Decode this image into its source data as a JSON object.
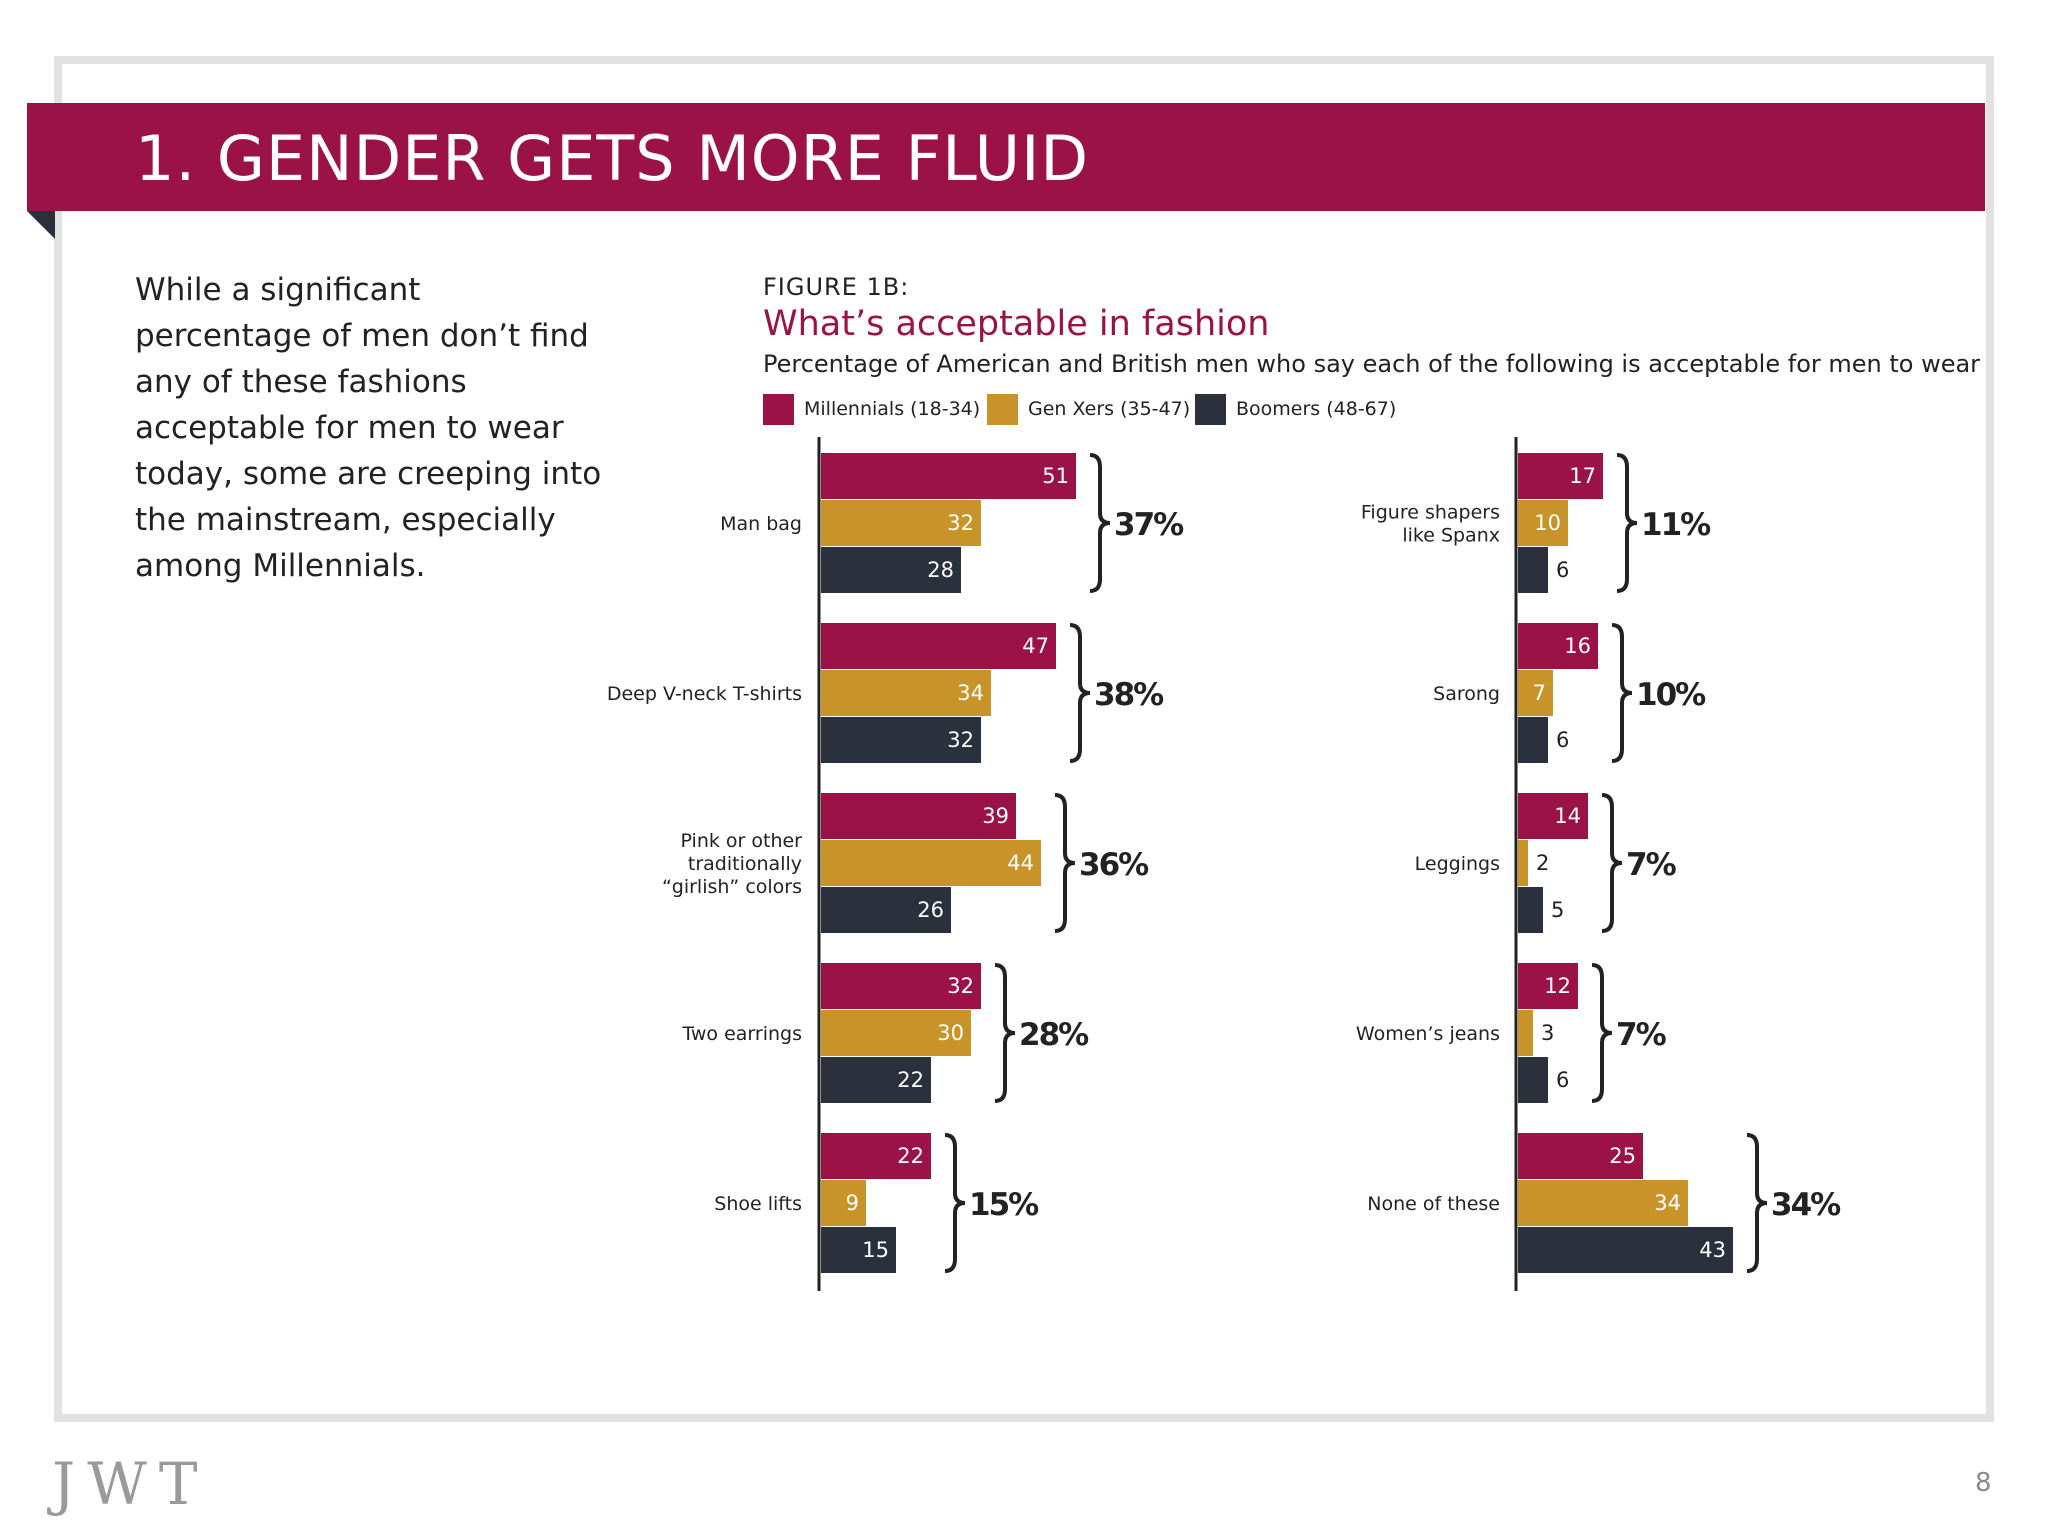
{
  "banner": {
    "title": "1. GENDER GETS MORE FLUID"
  },
  "intro": {
    "text": "While a significant percentage of men don’t find any of these fashions acceptable for men to wear today, some are creeping into the mainstream, especially among Millennials."
  },
  "figure": {
    "label": "FIGURE 1B:",
    "title": "What’s acceptable in fashion",
    "subtitle": "Percentage of American and British men who say each of the following is acceptable for men to wear"
  },
  "colors": {
    "millennials": "#9b1346",
    "genx": "#c8942a",
    "boomers": "#2b303d",
    "banner": "#9b1346"
  },
  "chart_data": {
    "type": "bar",
    "orientation": "horizontal",
    "title": "What’s acceptable in fashion",
    "subtitle": "Percentage of American and British men who say each of the following is acceptable for men to wear",
    "legend": [
      "Millennials (18-34)",
      "Gen Xers (35-47)",
      "Boomers (48-67)"
    ],
    "legend_placement": "top",
    "grid": false,
    "panels": [
      {
        "categories": [
          "Man bag",
          "Deep V-neck T-shirts",
          "Pink or other traditionally “girlish” colors",
          "Two earrings",
          "Shoe lifts"
        ],
        "series": [
          {
            "name": "Millennials (18-34)",
            "values": [
              51,
              47,
              39,
              32,
              22
            ]
          },
          {
            "name": "Gen Xers (35-47)",
            "values": [
              32,
              34,
              44,
              30,
              9
            ]
          },
          {
            "name": "Boomers (48-67)",
            "values": [
              28,
              32,
              26,
              22,
              15
            ]
          }
        ],
        "totals": [
          "37%",
          "38%",
          "36%",
          "28%",
          "15%"
        ]
      },
      {
        "categories": [
          "Figure shapers like Spanx",
          "Sarong",
          "Leggings",
          "Women’s jeans",
          "None of these"
        ],
        "series": [
          {
            "name": "Millennials (18-34)",
            "values": [
              17,
              16,
              14,
              12,
              25
            ]
          },
          {
            "name": "Gen Xers (35-47)",
            "values": [
              10,
              7,
              2,
              3,
              34
            ]
          },
          {
            "name": "Boomers (48-67)",
            "values": [
              6,
              6,
              5,
              6,
              43
            ]
          }
        ],
        "totals": [
          "11%",
          "10%",
          "7%",
          "7%",
          "34%"
        ]
      }
    ]
  },
  "footer": {
    "logo": "JWT",
    "page_number": "8"
  }
}
